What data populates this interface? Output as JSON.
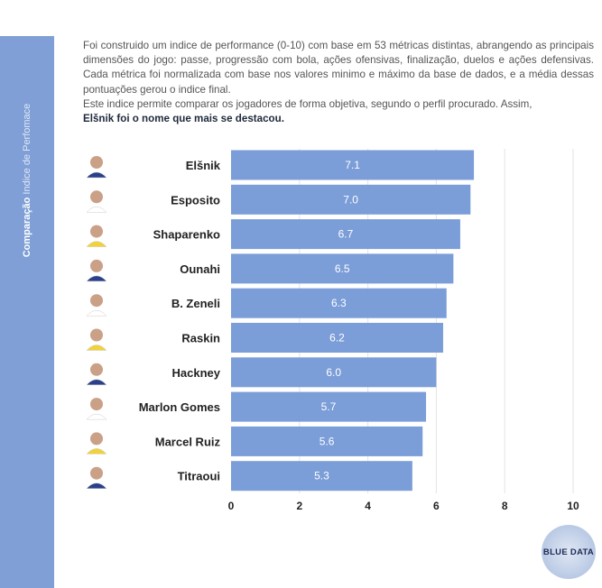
{
  "sidebar": {
    "title_bold": "Comparação",
    "title_light": "Indice de Perfomace"
  },
  "intro": {
    "paragraph1": "Foi construido um indice de performance (0-10) com base em 53 métricas distintas, abrangendo as principais dimensões do jogo: passe, progressão com bola, ações ofensivas, finalização, duelos e ações defensivas. Cada métrica foi normalizada com base nos valores minimo e máximo da base de dados, e a média dessas pontuações gerou o indice final.",
    "paragraph2": "Este indice permite comparar os jogadores de forma objetiva, segundo o perfil procurado. Assim,",
    "highlight": "Elšnik foi o nome que mais se destacou."
  },
  "chart_data": {
    "type": "bar",
    "orientation": "horizontal",
    "categories": [
      "Elšnik",
      "Esposito",
      "Shaparenko",
      "Ounahi",
      "B. Zeneli",
      "Raskin",
      "Hackney",
      "Marlon Gomes",
      "Marcel Ruiz",
      "Titraoui"
    ],
    "values": [
      7.1,
      7.0,
      6.7,
      6.5,
      6.3,
      6.2,
      6.0,
      5.7,
      5.6,
      5.3
    ],
    "value_labels": [
      "7.1",
      "7.0",
      "6.7",
      "6.5",
      "6.3",
      "6.2",
      "6.0",
      "5.7",
      "5.6",
      "5.3"
    ],
    "xlim": [
      0,
      10
    ],
    "xticks": [
      "0",
      "2",
      "4",
      "6",
      "8",
      "10"
    ],
    "grid": true,
    "bar_color": "#7b9dd8",
    "title": "",
    "xlabel": "",
    "ylabel": ""
  },
  "logo": {
    "text": "BLUE DATA"
  }
}
